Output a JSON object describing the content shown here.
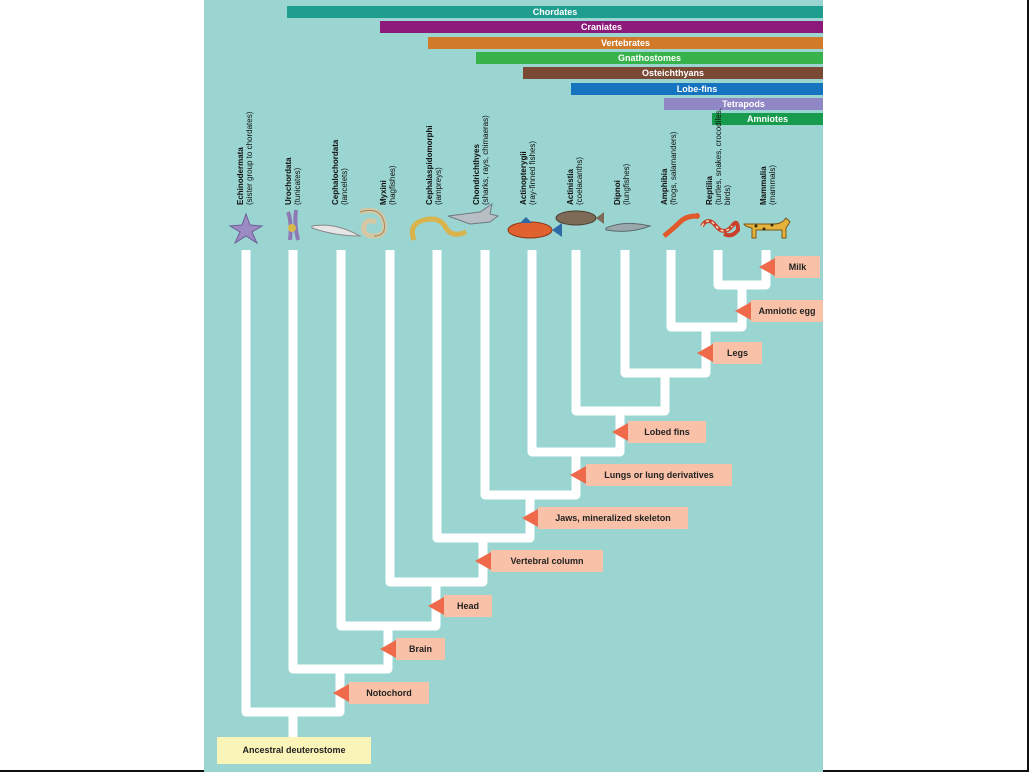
{
  "groups": [
    {
      "label": "Chordates",
      "color": "#1f9e8f"
    },
    {
      "label": "Craniates",
      "color": "#8b1a7a"
    },
    {
      "label": "Vertebrates",
      "color": "#d07a2a"
    },
    {
      "label": "Gnathostomes",
      "color": "#38b24a"
    },
    {
      "label": "Osteichthyans",
      "color": "#7b4a35"
    },
    {
      "label": "Lobe-fins",
      "color": "#1673bf"
    },
    {
      "label": "Tetrapods",
      "color": "#8f86c6"
    },
    {
      "label": "Amniotes",
      "color": "#169c4c"
    }
  ],
  "taxa": [
    {
      "name": "Echinodermata",
      "common": "(sister group to chordates)",
      "icon": "sea-star-icon"
    },
    {
      "name": "Urochordata",
      "common": "(tunicates)",
      "icon": "tunicate-icon"
    },
    {
      "name": "Cephalochordata",
      "common": "(lancelets)",
      "icon": "lancelet-icon"
    },
    {
      "name": "Myxini",
      "common": "(hagfishes)",
      "icon": "hagfish-icon"
    },
    {
      "name": "Cephalaspidomorphi",
      "common": "(lampreys)",
      "icon": "lamprey-icon"
    },
    {
      "name": "Chondrichthyes",
      "common": "(sharks, rays, chimaeras)",
      "icon": "shark-icon"
    },
    {
      "name": "Actinopterygii",
      "common": "(ray-finned fishes)",
      "icon": "ray-finned-fish-icon"
    },
    {
      "name": "Actinistia",
      "common": "(coelacanths)",
      "icon": "coelacanth-icon"
    },
    {
      "name": "Dipnoi",
      "common": "(lungfishes)",
      "icon": "lungfish-icon"
    },
    {
      "name": "Amphibia",
      "common": "(frogs, salamanders)",
      "icon": "salamander-icon"
    },
    {
      "name": "Reptilia",
      "common": "(turtles, snakes, crocodiles, birds)",
      "icon": "snake-icon"
    },
    {
      "name": "Mammalia",
      "common": "(mammals)",
      "icon": "leopard-icon"
    }
  ],
  "characters": [
    "Milk",
    "Amniotic egg",
    "Legs",
    "Lobed fins",
    "Lungs or lung derivatives",
    "Jaws, mineralized skeleton",
    "Vertebral column",
    "Head",
    "Brain",
    "Notochord"
  ],
  "root_label": "Ancestral deuterostome",
  "colors": {
    "background": "#9ad5d1",
    "branch": "#ffffff",
    "character_chip": "#f9c2a8",
    "character_arrow": "#ef6a4b",
    "root_box": "#fbf4b9"
  }
}
